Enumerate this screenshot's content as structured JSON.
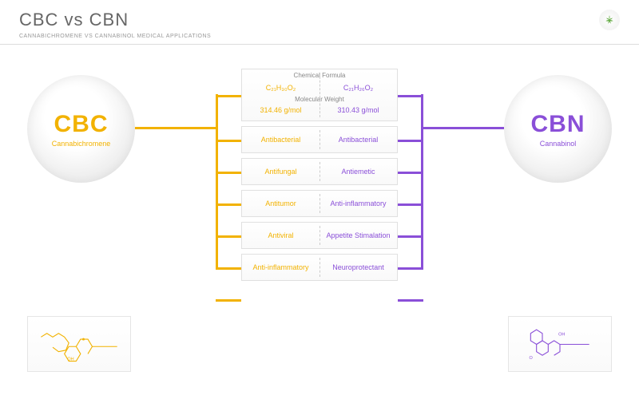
{
  "header": {
    "title": "CBC vs CBN",
    "subtitle": "CANNABICHROMENE VS CANNABINOL MEDICAL APPLICATIONS"
  },
  "left": {
    "abbr": "CBC",
    "name": "Cannabichromene",
    "color": "#f2b200",
    "formula": "C₂₁H₃₀O₂",
    "weight": "314.46 g/mol",
    "properties": [
      "Antibacterial",
      "Antifungal",
      "Antitumor",
      "Antiviral",
      "Anti-inflammatory"
    ]
  },
  "right": {
    "abbr": "CBN",
    "name": "Cannabinol",
    "color": "#8a4fd8",
    "formula": "C₂₁H₂₆O₂",
    "weight": "310.43 g/mol",
    "properties": [
      "Antibacterial",
      "Antiemetic",
      "Anti-inflammatory",
      "Appetite Stimalation",
      "Neuroprotectant"
    ]
  },
  "labels": {
    "formula": "Chemical Formula",
    "weight": "Molecular Weight"
  },
  "rows": [
    62,
    115,
    155,
    195,
    235,
    275,
    315
  ],
  "style": {
    "bg": "#ffffff",
    "border": "#e0e0e0",
    "text_muted": "#888",
    "connector_width": 3,
    "box_gap": 6,
    "circle_diam": 135
  }
}
